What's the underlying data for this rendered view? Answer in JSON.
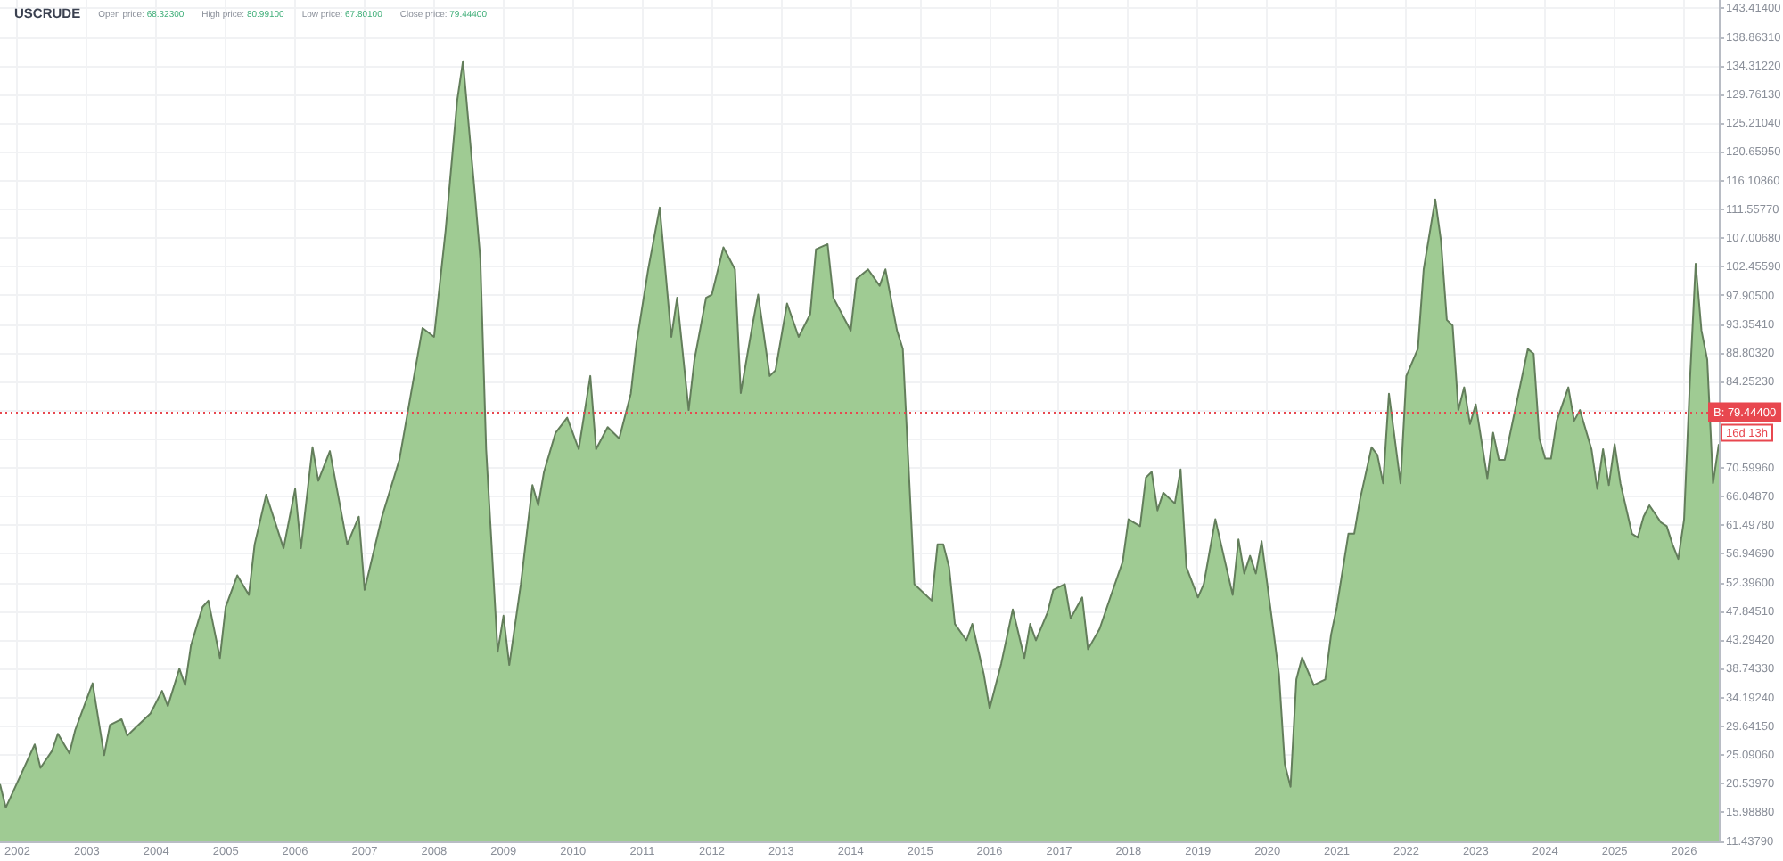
{
  "chart_data": {
    "type": "area",
    "title": "USCRUDE",
    "subtitle": "Open price: 68.32300 High price: 80.99100 Low price: 67.80100 Close price: 79.44400",
    "annotations": [
      "16d 13h"
    ],
    "x": [
      "2001-10",
      "2001-11",
      "2002-02",
      "2002-04",
      "2002-05",
      "2002-07",
      "2002-08",
      "2002-10",
      "2002-11",
      "2003-02",
      "2003-04",
      "2003-05",
      "2003-07",
      "2003-08",
      "2003-09",
      "2003-12",
      "2004-02",
      "2004-03",
      "2004-05",
      "2004-06",
      "2004-07",
      "2004-09",
      "2004-10",
      "2004-12",
      "2005-01",
      "2005-03",
      "2005-05",
      "2005-06",
      "2005-08",
      "2005-11",
      "2006-01",
      "2006-02",
      "2006-04",
      "2006-05",
      "2006-07",
      "2006-10",
      "2006-12",
      "2007-01",
      "2007-04",
      "2007-07",
      "2007-11",
      "2008-01",
      "2008-03",
      "2008-05",
      "2008-06",
      "2008-08",
      "2008-09",
      "2008-10",
      "2008-12",
      "2009-01",
      "2009-02",
      "2009-04",
      "2009-06",
      "2009-07",
      "2009-08",
      "2009-10",
      "2009-12",
      "2010-02",
      "2010-04",
      "2010-05",
      "2010-07",
      "2010-09",
      "2010-11",
      "2010-12",
      "2011-02",
      "2011-04",
      "2011-06",
      "2011-07",
      "2011-09",
      "2011-10",
      "2011-12",
      "2012-01",
      "2012-03",
      "2012-05",
      "2012-06",
      "2012-08",
      "2012-09",
      "2012-11",
      "2012-12",
      "2013-02",
      "2013-04",
      "2013-06",
      "2013-07",
      "2013-09",
      "2013-10",
      "2014-01",
      "2014-02",
      "2014-04",
      "2014-06",
      "2014-07",
      "2014-09",
      "2014-10",
      "2014-12",
      "2015-03",
      "2015-04",
      "2015-05",
      "2015-06",
      "2015-07",
      "2015-09",
      "2015-10",
      "2015-12",
      "2016-01",
      "2016-03",
      "2016-05",
      "2016-07",
      "2016-08",
      "2016-09",
      "2016-11",
      "2016-12",
      "2017-02",
      "2017-03",
      "2017-05",
      "2017-06",
      "2017-08",
      "2017-10",
      "2017-12",
      "2018-01",
      "2018-03",
      "2018-04",
      "2018-05",
      "2018-06",
      "2018-07",
      "2018-09",
      "2018-10",
      "2018-11",
      "2019-01",
      "2019-02",
      "2019-04",
      "2019-05",
      "2019-07",
      "2019-08",
      "2019-09",
      "2019-10",
      "2019-11",
      "2019-12",
      "2020-02",
      "2020-03",
      "2020-04",
      "2020-05",
      "2020-06",
      "2020-07",
      "2020-09",
      "2020-11",
      "2020-12",
      "2021-01",
      "2021-03",
      "2021-04",
      "2021-05",
      "2021-07",
      "2021-08",
      "2021-09",
      "2021-10",
      "2021-12",
      "2022-01",
      "2022-03",
      "2022-04",
      "2022-06",
      "2022-07",
      "2022-08",
      "2022-09",
      "2022-10",
      "2022-11",
      "2022-12",
      "2023-01",
      "2023-03",
      "2023-04",
      "2023-05",
      "2023-06",
      "2023-08",
      "2023-10",
      "2023-11",
      "2023-12",
      "2024-01",
      "2024-02",
      "2024-03",
      "2024-05",
      "2024-06",
      "2024-07",
      "2024-09",
      "2024-10",
      "2024-11",
      "2024-12",
      "2025-01",
      "2025-02",
      "2025-04",
      "2025-05",
      "2025-06",
      "2025-07",
      "2025-09",
      "2025-10",
      "2025-11",
      "2025-12",
      "2026-01",
      "2026-02",
      "2026-03",
      "2026-04",
      "2026-05",
      "2026-06",
      "2026-07"
    ],
    "series": [
      {
        "color": "#9fcb93",
        "values": [
          20.5,
          16.8,
          22.8,
          26.8,
          23.1,
          25.8,
          28.5,
          25.4,
          29.1,
          36.5,
          25.1,
          29.9,
          30.8,
          28.2,
          29.1,
          31.7,
          35.3,
          32.9,
          38.8,
          36.2,
          42.5,
          48.6,
          49.6,
          40.5,
          48.6,
          53.6,
          50.5,
          58.5,
          66.4,
          57.9,
          67.3,
          57.9,
          73.9,
          68.6,
          73.3,
          58.5,
          62.9,
          51.3,
          62.9,
          71.9,
          92.8,
          91.4,
          108.3,
          128.9,
          135.1,
          114.6,
          103.8,
          73.6,
          41.5,
          47.2,
          39.4,
          52.2,
          67.9,
          64.7,
          70.0,
          76.2,
          78.6,
          73.6,
          85.2,
          73.6,
          77.1,
          75.3,
          82.4,
          90.5,
          102.1,
          111.9,
          91.4,
          97.6,
          79.8,
          87.8,
          97.6,
          98.1,
          105.6,
          102.1,
          82.5,
          93.2,
          98.1,
          85.2,
          86.1,
          96.7,
          91.4,
          95.0,
          105.3,
          106.1,
          97.6,
          92.4,
          100.6,
          102.1,
          99.5,
          102.1,
          92.4,
          89.5,
          52.2,
          49.6,
          58.5,
          58.5,
          54.9,
          45.9,
          43.3,
          45.9,
          37.9,
          32.5,
          39.6,
          48.2,
          40.5,
          45.9,
          43.3,
          47.7,
          51.3,
          52.2,
          46.8,
          50.1,
          41.9,
          45.1,
          50.5,
          55.8,
          62.5,
          61.4,
          69.1,
          70.0,
          63.9,
          66.7,
          65.0,
          70.4,
          54.9,
          50.1,
          52.2,
          62.5,
          58.5,
          50.5,
          59.3,
          53.9,
          56.7,
          53.9,
          59.0,
          45.1,
          37.9,
          23.7,
          20.1,
          37.1,
          40.6,
          36.2,
          37.1,
          44.2,
          48.6,
          60.2,
          60.2,
          65.6,
          73.9,
          72.7,
          68.2,
          82.4,
          68.2,
          85.2,
          89.5,
          102.1,
          113.2,
          106.6,
          94.1,
          93.2,
          79.8,
          83.4,
          77.6,
          80.7,
          69.0,
          76.2,
          71.9,
          71.9,
          80.7,
          89.5,
          88.7,
          75.3,
          72.1,
          72.1,
          78.1,
          83.4,
          78.1,
          79.8,
          73.6,
          67.3,
          73.6,
          67.9,
          74.4,
          68.2,
          60.2,
          59.6,
          62.9,
          64.7,
          62.0,
          61.4,
          58.5,
          56.2,
          62.5,
          84.3,
          103.0,
          92.4,
          87.8,
          68.2,
          74.4
        ]
      }
    ],
    "xlim": [
      "2001-10",
      "2026-07"
    ],
    "xticks": [
      "2002",
      "2003",
      "2004",
      "2005",
      "2006",
      "2007",
      "2008",
      "2009",
      "2010",
      "2011",
      "2012",
      "2013",
      "2014",
      "2015",
      "2016",
      "2017",
      "2018",
      "2019",
      "2020",
      "2021",
      "2022",
      "2023",
      "2024",
      "2025",
      "2026"
    ],
    "ylim": [
      11.4379,
      144.8
    ],
    "yticks": [
      {
        "value": 143.414,
        "label": "143.41400"
      },
      {
        "value": 138.8631,
        "label": "138.86310"
      },
      {
        "value": 134.3122,
        "label": "134.31220"
      },
      {
        "value": 129.7613,
        "label": "129.76130"
      },
      {
        "value": 125.2104,
        "label": "125.21040"
      },
      {
        "value": 120.6595,
        "label": "120.65950"
      },
      {
        "value": 116.1086,
        "label": "116.10860"
      },
      {
        "value": 111.5577,
        "label": "111.55770"
      },
      {
        "value": 107.0068,
        "label": "107.00680"
      },
      {
        "value": 102.4559,
        "label": "102.45590"
      },
      {
        "value": 97.905,
        "label": "97.90500"
      },
      {
        "value": 93.3541,
        "label": "93.35410"
      },
      {
        "value": 88.8032,
        "label": "88.80320"
      },
      {
        "value": 84.2523,
        "label": "84.25230"
      },
      {
        "value": 79.7014,
        "label": null
      },
      {
        "value": 75.1505,
        "label": null
      },
      {
        "value": 70.5996,
        "label": "70.59960"
      },
      {
        "value": 66.0487,
        "label": "66.04870"
      },
      {
        "value": 61.4978,
        "label": "61.49780"
      },
      {
        "value": 56.9469,
        "label": "56.94690"
      },
      {
        "value": 52.396,
        "label": "52.39600"
      },
      {
        "value": 47.8451,
        "label": "47.84510"
      },
      {
        "value": 43.2942,
        "label": "43.29420"
      },
      {
        "value": 38.7433,
        "label": "38.74330"
      },
      {
        "value": 34.1924,
        "label": "34.19240"
      },
      {
        "value": 29.6415,
        "label": "29.64150"
      },
      {
        "value": 25.0906,
        "label": "25.09060"
      },
      {
        "value": 20.5397,
        "label": "20.53970"
      },
      {
        "value": 15.9888,
        "label": "15.98880"
      },
      {
        "value": 11.4379,
        "label": "11.43790"
      }
    ],
    "ref_lines": [
      {
        "axis": "y",
        "value": 79.444,
        "label": "B: 79.44400",
        "color": "#e8474f",
        "line_style": "dotted"
      }
    ],
    "grid": true
  }
}
